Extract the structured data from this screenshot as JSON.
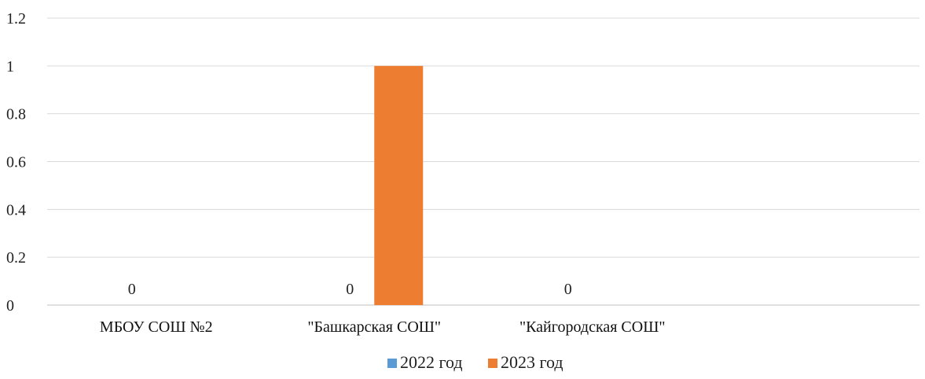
{
  "chart_data": {
    "type": "bar",
    "categories": [
      "МБОУ СОШ №2",
      "\"Башкарская СОШ\"",
      "\"Кайгородская СОШ\"",
      ""
    ],
    "series": [
      {
        "name": "2022 год",
        "values": [
          0,
          0,
          0,
          null
        ],
        "color": "#5b9bd5"
      },
      {
        "name": "2023 год",
        "values": [
          null,
          1,
          null,
          null
        ],
        "color": "#ed7d31"
      }
    ],
    "data_labels": [
      {
        "series": 0,
        "category": 0,
        "text": "0"
      },
      {
        "series": 0,
        "category": 1,
        "text": "0"
      },
      {
        "series": 0,
        "category": 2,
        "text": "0"
      }
    ],
    "yticks": [
      "0",
      "0.2",
      "0.4",
      "0.6",
      "0.8",
      "1",
      "1.2"
    ],
    "ylim": [
      0,
      1.2
    ],
    "grid": true,
    "legend_position": "bottom",
    "title": "",
    "xlabel": "",
    "ylabel": ""
  }
}
